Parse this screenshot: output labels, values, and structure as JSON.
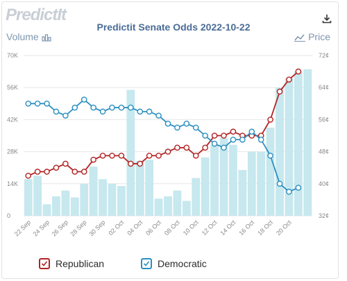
{
  "brand": "PredictIt",
  "header": {
    "download_icon": "download-icon"
  },
  "left_axis_caption": "Volume",
  "left_axis_icon": "bar-chart-icon",
  "right_axis_caption": "Price",
  "right_axis_icon": "line-chart-icon",
  "legend": [
    {
      "label": "Republican",
      "color": "#b22222"
    },
    {
      "label": "Democratic",
      "color": "#2b8fc1"
    }
  ],
  "chart_data": {
    "type": "bar+line",
    "title": "Predictit Senate Odds 2022-10-22",
    "categories": [
      "22 Sep",
      "23 Sep",
      "24 Sep",
      "25 Sep",
      "26 Sep",
      "27 Sep",
      "28 Sep",
      "29 Sep",
      "30 Sep",
      "01 Oct",
      "02 Oct",
      "03 Oct",
      "04 Oct",
      "05 Oct",
      "06 Oct",
      "07 Oct",
      "08 Oct",
      "09 Oct",
      "10 Oct",
      "11 Oct",
      "12 Oct",
      "13 Oct",
      "14 Oct",
      "15 Oct",
      "16 Oct",
      "17 Oct",
      "18 Oct",
      "19 Oct",
      "20 Oct",
      "21 Oct",
      "22 Oct"
    ],
    "x_tick_labels": [
      "22 Sep",
      "24 Sep",
      "26 Sep",
      "28 Sep",
      "30 Sep",
      "02 Oct",
      "04 Oct",
      "06 Oct",
      "08 Oct",
      "10 Oct",
      "12 Oct",
      "14 Oct",
      "16 Oct",
      "18 Oct",
      "20 Oct"
    ],
    "volume": {
      "axis": "left",
      "ylim": [
        0,
        70000
      ],
      "tick_labels": [
        "0",
        "14K",
        "28K",
        "42K",
        "56K",
        "70K"
      ],
      "values": [
        16000,
        17500,
        5000,
        8500,
        11000,
        8000,
        14000,
        21500,
        16000,
        14000,
        13000,
        55000,
        24000,
        24500,
        7500,
        8500,
        11000,
        6500,
        16500,
        25500,
        31000,
        34000,
        31000,
        20000,
        28000,
        28000,
        38500,
        56000,
        60000,
        63000,
        64000
      ]
    },
    "price": {
      "axis": "right",
      "ylim": [
        32,
        72
      ],
      "tick_labels": [
        "32¢",
        "40¢",
        "48¢",
        "56¢",
        "64¢",
        "72¢"
      ],
      "series": [
        {
          "name": "Republican",
          "values": [
            42,
            43,
            43,
            44,
            45,
            43,
            43,
            46,
            47,
            47,
            47,
            45,
            45,
            47,
            47,
            48,
            49,
            49,
            47,
            49,
            52,
            52,
            53,
            52,
            52,
            52,
            56,
            63,
            66,
            68,
            null
          ]
        },
        {
          "name": "Democratic",
          "values": [
            60,
            60,
            60,
            58,
            57,
            59,
            61,
            59,
            58,
            59,
            59,
            59,
            58,
            58,
            57,
            55,
            54,
            55,
            54,
            52,
            50,
            49,
            51,
            51,
            53,
            51,
            47,
            40,
            38,
            39,
            null
          ]
        }
      ]
    },
    "grid": true
  }
}
